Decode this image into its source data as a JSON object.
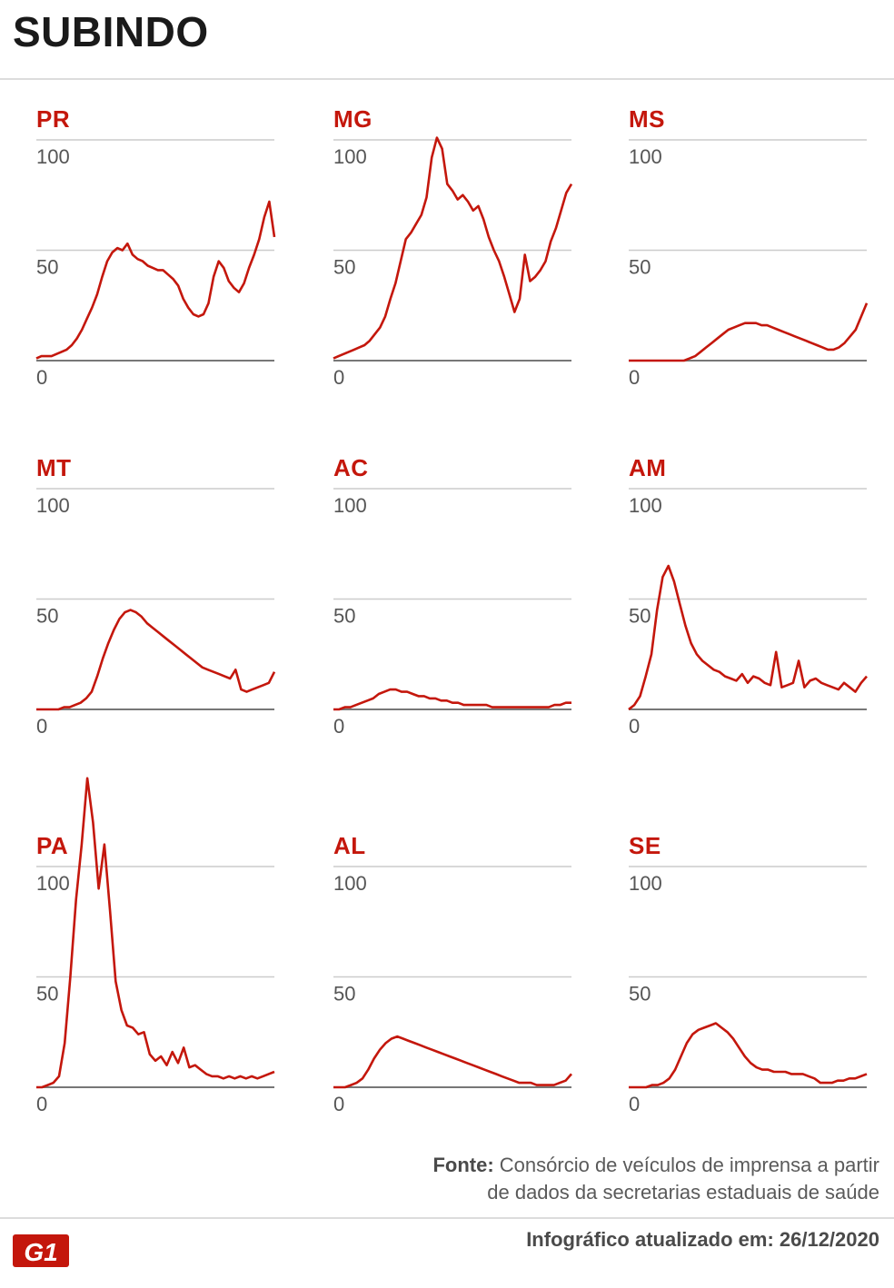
{
  "header": {
    "title": "SUBINDO"
  },
  "footer": {
    "source_label": "Fonte:",
    "source_text_line1": " Consórcio de veículos de imprensa a partir",
    "source_text_line2": "de dados da secretarias estaduais de saúde",
    "updated": "Infográfico atualizado em: 26/12/2020",
    "logo_text": "G1"
  },
  "colors": {
    "series": "#c4170c",
    "grid": "#cccccc",
    "baseline": "#777777",
    "title": "#1a1a1a"
  },
  "chart_data": [
    {
      "type": "line",
      "title": "PR",
      "ylim": [
        0,
        100
      ],
      "yticks": [
        0,
        50,
        100
      ],
      "grid": true,
      "y": [
        1,
        2,
        2,
        2,
        3,
        4,
        5,
        7,
        10,
        14,
        19,
        24,
        30,
        38,
        45,
        49,
        51,
        50,
        53,
        48,
        46,
        45,
        43,
        42,
        41,
        41,
        39,
        37,
        34,
        28,
        24,
        21,
        20,
        21,
        26,
        38,
        45,
        42,
        36,
        33,
        31,
        35,
        42,
        48,
        55,
        65,
        72,
        56
      ]
    },
    {
      "type": "line",
      "title": "MG",
      "ylim": [
        0,
        100
      ],
      "yticks": [
        0,
        50,
        100
      ],
      "grid": true,
      "y": [
        1,
        2,
        3,
        4,
        5,
        6,
        7,
        9,
        12,
        15,
        20,
        28,
        35,
        45,
        55,
        58,
        62,
        66,
        74,
        92,
        101,
        96,
        80,
        77,
        73,
        75,
        72,
        68,
        70,
        64,
        56,
        50,
        45,
        38,
        30,
        22,
        28,
        48,
        36,
        38,
        41,
        45,
        54,
        60,
        68,
        76,
        80
      ]
    },
    {
      "type": "line",
      "title": "MS",
      "ylim": [
        0,
        100
      ],
      "yticks": [
        0,
        50,
        100
      ],
      "grid": true,
      "y": [
        0,
        0,
        0,
        0,
        0,
        0,
        0,
        0,
        0,
        0,
        0,
        1,
        2,
        4,
        6,
        8,
        10,
        12,
        14,
        15,
        16,
        17,
        17,
        17,
        16,
        16,
        15,
        14,
        13,
        12,
        11,
        10,
        9,
        8,
        7,
        6,
        5,
        5,
        6,
        8,
        11,
        14,
        20,
        26
      ]
    },
    {
      "type": "line",
      "title": "MT",
      "ylim": [
        0,
        100
      ],
      "yticks": [
        0,
        50,
        100
      ],
      "grid": true,
      "y": [
        0,
        0,
        0,
        0,
        0,
        1,
        1,
        2,
        3,
        5,
        8,
        15,
        23,
        30,
        36,
        41,
        44,
        45,
        44,
        42,
        39,
        37,
        35,
        33,
        31,
        29,
        27,
        25,
        23,
        21,
        19,
        18,
        17,
        16,
        15,
        14,
        18,
        9,
        8,
        9,
        10,
        11,
        12,
        17
      ]
    },
    {
      "type": "line",
      "title": "AC",
      "ylim": [
        0,
        100
      ],
      "yticks": [
        0,
        50,
        100
      ],
      "grid": true,
      "y": [
        0,
        0,
        1,
        1,
        2,
        3,
        4,
        5,
        7,
        8,
        9,
        9,
        8,
        8,
        7,
        6,
        6,
        5,
        5,
        4,
        4,
        3,
        3,
        2,
        2,
        2,
        2,
        2,
        1,
        1,
        1,
        1,
        1,
        1,
        1,
        1,
        1,
        1,
        1,
        2,
        2,
        3,
        3
      ]
    },
    {
      "type": "line",
      "title": "AM",
      "ylim": [
        0,
        100
      ],
      "yticks": [
        0,
        50,
        100
      ],
      "grid": true,
      "y": [
        0,
        2,
        6,
        15,
        25,
        45,
        60,
        65,
        58,
        48,
        38,
        30,
        25,
        22,
        20,
        18,
        17,
        15,
        14,
        13,
        16,
        12,
        15,
        14,
        12,
        11,
        26,
        10,
        11,
        12,
        22,
        10,
        13,
        14,
        12,
        11,
        10,
        9,
        12,
        10,
        8,
        12,
        15
      ]
    },
    {
      "type": "line",
      "title": "PA",
      "ylim": [
        0,
        100
      ],
      "yticks": [
        0,
        50,
        100
      ],
      "grid": true,
      "y": [
        0,
        0,
        1,
        2,
        5,
        20,
        50,
        85,
        110,
        140,
        120,
        90,
        110,
        80,
        48,
        35,
        28,
        27,
        24,
        25,
        15,
        12,
        14,
        10,
        16,
        11,
        18,
        9,
        10,
        8,
        6,
        5,
        5,
        4,
        5,
        4,
        5,
        4,
        5,
        4,
        5,
        6,
        7
      ]
    },
    {
      "type": "line",
      "title": "AL",
      "ylim": [
        0,
        100
      ],
      "yticks": [
        0,
        50,
        100
      ],
      "grid": true,
      "y": [
        0,
        0,
        0,
        1,
        2,
        4,
        8,
        13,
        17,
        20,
        22,
        23,
        22,
        21,
        20,
        19,
        18,
        17,
        16,
        15,
        14,
        13,
        12,
        11,
        10,
        9,
        8,
        7,
        6,
        5,
        4,
        3,
        2,
        2,
        2,
        1,
        1,
        1,
        1,
        2,
        3,
        6
      ]
    },
    {
      "type": "line",
      "title": "SE",
      "ylim": [
        0,
        100
      ],
      "yticks": [
        0,
        50,
        100
      ],
      "grid": true,
      "y": [
        0,
        0,
        0,
        0,
        1,
        1,
        2,
        4,
        8,
        14,
        20,
        24,
        26,
        27,
        28,
        29,
        27,
        25,
        22,
        18,
        14,
        11,
        9,
        8,
        8,
        7,
        7,
        7,
        6,
        6,
        6,
        5,
        4,
        2,
        2,
        2,
        3,
        3,
        4,
        4,
        5,
        6
      ]
    }
  ]
}
